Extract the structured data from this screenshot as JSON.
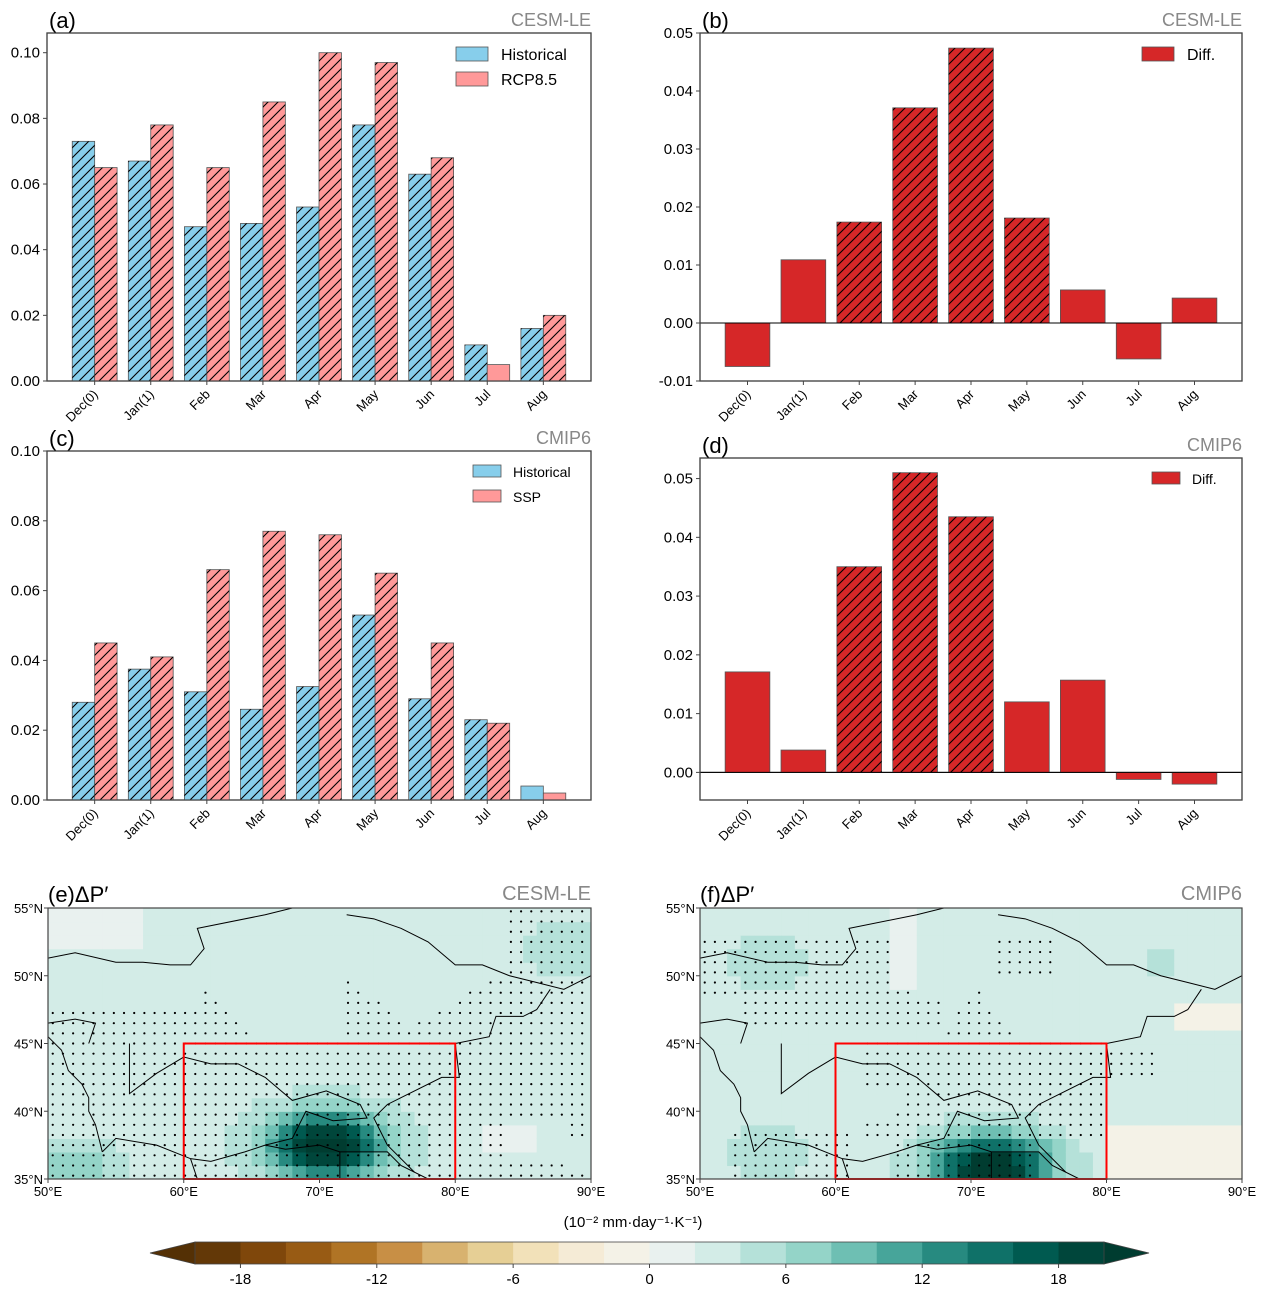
{
  "chart_data": [
    {
      "id": "a",
      "type": "bar",
      "panel_label": "(a)",
      "source_label": "CESM-LE",
      "categories": [
        "Dec(0)",
        "Jan(1)",
        "Feb",
        "Mar",
        "Apr",
        "May",
        "Jun",
        "Jul",
        "Aug"
      ],
      "series": [
        {
          "name": "Historical",
          "color": "#87ceeb",
          "values": [
            0.073,
            0.067,
            0.047,
            0.048,
            0.053,
            0.078,
            0.063,
            0.011,
            0.016
          ],
          "hatched": [
            true,
            true,
            true,
            true,
            true,
            true,
            true,
            true,
            true
          ]
        },
        {
          "name": "RCP8.5",
          "color": "#ff9999",
          "values": [
            0.065,
            0.078,
            0.065,
            0.085,
            0.1,
            0.097,
            0.068,
            0.005,
            0.02
          ],
          "hatched": [
            true,
            true,
            true,
            true,
            true,
            true,
            true,
            false,
            true
          ]
        }
      ],
      "ylim": [
        0.0,
        0.106
      ],
      "yticks": [
        0.0,
        0.02,
        0.04,
        0.06,
        0.08,
        0.1
      ],
      "ytick_labels": [
        "0.00",
        "0.02",
        "0.04",
        "0.06",
        "0.08",
        "0.10"
      ],
      "xlabel": "",
      "ylabel": "",
      "legend": "top-right",
      "grid": false
    },
    {
      "id": "b",
      "type": "bar",
      "panel_label": "(b)",
      "source_label": "CESM-LE",
      "categories": [
        "Dec(0)",
        "Jan(1)",
        "Feb",
        "Mar",
        "Apr",
        "May",
        "Jun",
        "Jul",
        "Aug"
      ],
      "series": [
        {
          "name": "Diff.",
          "color": "#d62728",
          "values": [
            -0.0075,
            0.0109,
            0.0174,
            0.0371,
            0.0474,
            0.0181,
            0.0057,
            -0.0062,
            0.0043
          ],
          "hatched": [
            false,
            false,
            true,
            true,
            true,
            true,
            false,
            false,
            false
          ]
        }
      ],
      "ylim": [
        -0.01,
        0.05
      ],
      "yticks": [
        -0.01,
        0.0,
        0.01,
        0.02,
        0.03,
        0.04,
        0.05
      ],
      "ytick_labels": [
        "-0.01",
        "0.00",
        "0.01",
        "0.02",
        "0.03",
        "0.04",
        "0.05"
      ],
      "zero_line": true,
      "xlabel": "",
      "ylabel": "",
      "legend": "top-right",
      "grid": false
    },
    {
      "id": "c",
      "type": "bar",
      "panel_label": "(c)",
      "source_label": "CMIP6",
      "categories": [
        "Dec(0)",
        "Jan(1)",
        "Feb",
        "Mar",
        "Apr",
        "May",
        "Jun",
        "Jul",
        "Aug"
      ],
      "series": [
        {
          "name": "Historical",
          "color": "#87ceeb",
          "values": [
            0.028,
            0.0375,
            0.031,
            0.026,
            0.0325,
            0.053,
            0.029,
            0.023,
            0.004
          ],
          "hatched": [
            true,
            true,
            true,
            true,
            true,
            true,
            true,
            true,
            false
          ]
        },
        {
          "name": "SSP",
          "color": "#ff9999",
          "values": [
            0.045,
            0.041,
            0.066,
            0.077,
            0.076,
            0.065,
            0.045,
            0.022,
            0.002
          ],
          "hatched": [
            true,
            true,
            true,
            true,
            true,
            true,
            true,
            true,
            false
          ]
        }
      ],
      "ylim": [
        0.0,
        0.1
      ],
      "yticks": [
        0.0,
        0.02,
        0.04,
        0.06,
        0.08,
        0.1
      ],
      "ytick_labels": [
        "0.00",
        "0.02",
        "0.04",
        "0.06",
        "0.08",
        "0.10"
      ],
      "xlabel": "",
      "ylabel": "",
      "legend": "top-right",
      "grid": false
    },
    {
      "id": "d",
      "type": "bar",
      "panel_label": "(d)",
      "source_label": "CMIP6",
      "categories": [
        "Dec(0)",
        "Jan(1)",
        "Feb",
        "Mar",
        "Apr",
        "May",
        "Jun",
        "Jul",
        "Aug"
      ],
      "series": [
        {
          "name": "Diff.",
          "color": "#d62728",
          "values": [
            0.0171,
            0.0038,
            0.035,
            0.051,
            0.0435,
            0.012,
            0.0157,
            -0.0012,
            -0.002
          ],
          "hatched": [
            false,
            false,
            true,
            true,
            true,
            false,
            false,
            false,
            false
          ]
        }
      ],
      "ylim": [
        -0.0047,
        0.0535
      ],
      "yticks": [
        0.0,
        0.01,
        0.02,
        0.03,
        0.04,
        0.05
      ],
      "ytick_labels": [
        "0.00",
        "0.01",
        "0.02",
        "0.03",
        "0.04",
        "0.05"
      ],
      "zero_line": true,
      "xlabel": "",
      "ylabel": "",
      "legend": "top-right",
      "grid": false
    },
    {
      "id": "e",
      "type": "heatmap",
      "panel_label": "(e)ΔP′",
      "source_label": "CESM-LE",
      "lon_range": [
        50,
        90
      ],
      "lat_range": [
        35,
        55
      ],
      "xticks": [
        50,
        60,
        70,
        80,
        90
      ],
      "xtick_labels": [
        "50°E",
        "60°E",
        "70°E",
        "80°E",
        "90°E"
      ],
      "yticks": [
        35,
        40,
        45,
        50,
        55
      ],
      "ytick_labels": [
        "35°N",
        "40°N",
        "45°N",
        "50°N",
        "55°N"
      ],
      "box": {
        "lon": [
          60,
          80
        ],
        "lat": [
          35,
          45
        ],
        "color": "#ff0000"
      },
      "maximum": {
        "lon": 70.5,
        "lat": 37.5,
        "value": 20
      }
    },
    {
      "id": "f",
      "type": "heatmap",
      "panel_label": "(f)ΔP′",
      "source_label": "CMIP6",
      "lon_range": [
        50,
        90
      ],
      "lat_range": [
        35,
        55
      ],
      "xticks": [
        50,
        60,
        70,
        80,
        90
      ],
      "xtick_labels": [
        "50°E",
        "60°E",
        "70°E",
        "80°E",
        "90°E"
      ],
      "yticks": [
        35,
        40,
        45,
        50,
        55
      ],
      "ytick_labels": [
        "35°N",
        "40°N",
        "45°N",
        "50°N",
        "55°N"
      ],
      "box": {
        "lon": [
          60,
          80
        ],
        "lat": [
          35,
          45
        ],
        "color": "#ff0000"
      },
      "maximum": {
        "lon": 71.5,
        "lat": 35.8,
        "value": 20
      }
    }
  ],
  "colorbar": {
    "label": "(10⁻² mm·day⁻¹·K⁻¹)",
    "levels": [
      -20,
      -18,
      -16,
      -14,
      -12,
      -10,
      -8,
      -6,
      -4,
      -2,
      0,
      2,
      4,
      6,
      8,
      10,
      12,
      14,
      16,
      18,
      20
    ],
    "ticks": [
      -18,
      -12,
      -6,
      0,
      6,
      12,
      18
    ],
    "tick_labels": [
      "-18",
      "-12",
      "-6",
      "0",
      "6",
      "12",
      "18"
    ],
    "extend": "both",
    "colors": [
      "#543005",
      "#633807",
      "#7f470b",
      "#985b14",
      "#b07425",
      "#c88f45",
      "#d8b26f",
      "#e6cf95",
      "#f2e1b9",
      "#f5ebd6",
      "#f4f2e7",
      "#e9f1ef",
      "#d3ece7",
      "#b5e1d9",
      "#94d4c8",
      "#6ebfb3",
      "#47a59a",
      "#278a80",
      "#0f7168",
      "#005a50",
      "#00463b",
      "#003c30"
    ]
  }
}
